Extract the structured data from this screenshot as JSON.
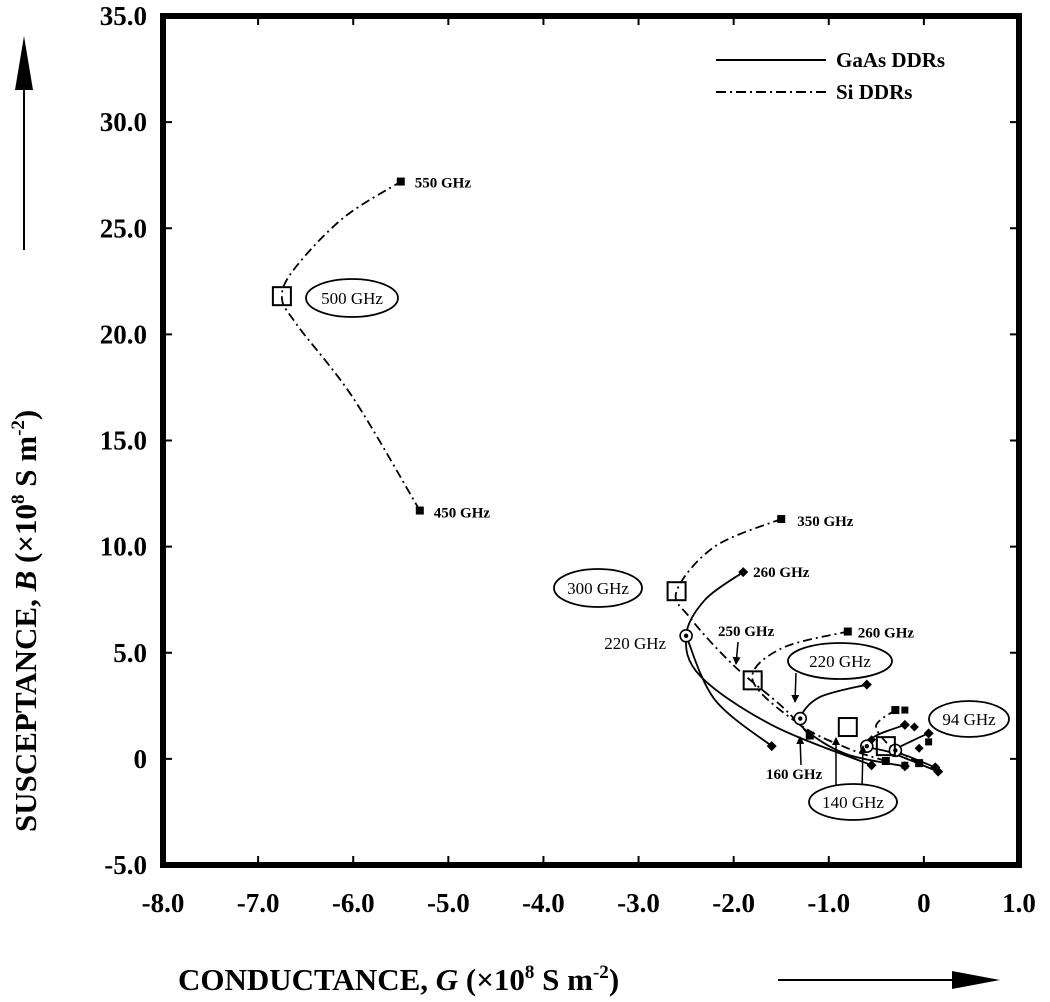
{
  "chart_data": {
    "type": "line",
    "xlabel": {
      "text": "CONDUCTANCE, ",
      "var": "G",
      "unit_pre": " (×10",
      "exp": "8",
      "unit_mid": " S m",
      "exp2": "-2",
      "unit_post": ")"
    },
    "ylabel": {
      "text": "SUSCEPTANCE, ",
      "var": "B",
      "unit_pre": " (×10",
      "exp": "8",
      "unit_mid": " S m",
      "exp2": "-2",
      "unit_post": ")"
    },
    "xlim": [
      -8.0,
      1.0
    ],
    "ylim": [
      -5.0,
      35.0
    ],
    "xticks": [
      -8.0,
      -7.0,
      -6.0,
      -5.0,
      -4.0,
      -3.0,
      -2.0,
      -1.0,
      0,
      1.0
    ],
    "xtick_labels": [
      "-8.0",
      "-7.0",
      "-6.0",
      "-5.0",
      "-4.0",
      "-3.0",
      "-2.0",
      "-1.0",
      "0",
      "1.0"
    ],
    "yticks": [
      -5.0,
      0,
      5.0,
      10.0,
      15.0,
      20.0,
      25.0,
      30.0,
      35.0
    ],
    "ytick_labels": [
      "-5.0",
      "0",
      "5.0",
      "10.0",
      "15.0",
      "20.0",
      "25.0",
      "30.0",
      "35.0"
    ],
    "grid": false,
    "legend": {
      "position": "top-right",
      "entries": [
        {
          "name": "GaAs DDRs",
          "style": "solid"
        },
        {
          "name": "Si DDRs",
          "style": "dash-dot"
        }
      ]
    },
    "series": [
      {
        "name": "Si DDRs",
        "style": "dash-dot",
        "marker": "square",
        "points": [
          [
            -5.3,
            11.7
          ],
          [
            -6.0,
            17.0
          ],
          [
            -6.6,
            20.5
          ],
          [
            -6.75,
            21.8
          ],
          [
            -6.6,
            23.2
          ],
          [
            -6.1,
            25.5
          ],
          [
            -5.5,
            27.2
          ]
        ]
      },
      {
        "name": "Si DDRs",
        "style": "dash-dot",
        "marker": "square",
        "points": [
          [
            -1.2,
            1.1
          ],
          [
            -1.5,
            2.5
          ],
          [
            -2.0,
            4.4
          ],
          [
            -2.45,
            6.6
          ],
          [
            -2.6,
            7.9
          ],
          [
            -2.2,
            10.0
          ],
          [
            -1.5,
            11.3
          ]
        ]
      },
      {
        "name": "Si DDRs",
        "style": "dash-dot",
        "marker": "square",
        "points": [
          [
            -0.4,
            -0.1
          ],
          [
            -0.8,
            0.5
          ],
          [
            -1.3,
            1.6
          ],
          [
            -1.8,
            3.7
          ],
          [
            -1.5,
            5.2
          ],
          [
            -0.8,
            6.0
          ]
        ]
      },
      {
        "name": "Si DDRs",
        "style": "dash-dot",
        "marker": "square",
        "points": [
          [
            -0.05,
            -0.2
          ],
          [
            -0.25,
            0.3
          ],
          [
            -0.4,
            0.8
          ],
          [
            -0.5,
            1.6
          ],
          [
            -0.3,
            2.3
          ]
        ]
      },
      {
        "name": "GaAs DDRs",
        "style": "solid",
        "marker": "diamond",
        "points": [
          [
            -0.55,
            -0.3
          ],
          [
            -1.6,
            1.6
          ],
          [
            -2.35,
            3.9
          ],
          [
            -2.5,
            5.8
          ],
          [
            -2.3,
            7.5
          ],
          [
            -1.9,
            8.8
          ]
        ]
      },
      {
        "name": "GaAs DDRs",
        "style": "solid",
        "marker": "diamond",
        "points": [
          [
            -2.5,
            5.8
          ],
          [
            -2.2,
            2.8
          ],
          [
            -1.6,
            0.6
          ]
        ]
      },
      {
        "name": "GaAs DDRs",
        "style": "solid",
        "marker": "diamond",
        "points": [
          [
            -0.2,
            -0.35
          ],
          [
            -0.8,
            0.2
          ],
          [
            -1.2,
            1.2
          ],
          [
            -1.3,
            1.9
          ],
          [
            -1.1,
            2.9
          ],
          [
            -0.6,
            3.5
          ]
        ]
      },
      {
        "name": "GaAs DDRs",
        "style": "solid",
        "marker": "diamond",
        "points": [
          [
            0.15,
            -0.6
          ],
          [
            -0.35,
            0.3
          ],
          [
            -0.6,
            0.6
          ],
          [
            -0.5,
            1.1
          ],
          [
            -0.2,
            1.6
          ]
        ]
      },
      {
        "name": "GaAs DDRs",
        "style": "solid",
        "marker": "diamond",
        "points": [
          [
            0.12,
            -0.4
          ],
          [
            -0.15,
            0.1
          ],
          [
            -0.3,
            0.4
          ],
          [
            -0.1,
            0.9
          ],
          [
            0.05,
            1.2
          ]
        ]
      }
    ],
    "annotations": [
      {
        "text": "550 GHz",
        "x": -5.5,
        "y": 27.2,
        "boxed": false
      },
      {
        "text": "500 GHz",
        "x": -6.75,
        "y": 21.8,
        "boxed": true
      },
      {
        "text": "450 GHz",
        "x": -5.3,
        "y": 11.7,
        "boxed": false
      },
      {
        "text": "350 GHz",
        "x": -1.5,
        "y": 11.3,
        "boxed": false
      },
      {
        "text": "300 GHz",
        "x": -2.6,
        "y": 7.9,
        "boxed": true
      },
      {
        "text": "260 GHz",
        "x": -1.9,
        "y": 8.8,
        "boxed": false
      },
      {
        "text": "220 GHz",
        "x": -2.5,
        "y": 5.8,
        "boxed": false
      },
      {
        "text": "250 GHz",
        "x": -2.0,
        "y": 4.0,
        "boxed": false
      },
      {
        "text": "260 GHz",
        "x": -0.8,
        "y": 6.0,
        "boxed": false
      },
      {
        "text": "220 GHz",
        "x": -1.8,
        "y": 3.7,
        "boxed": true
      },
      {
        "text": "160 GHz",
        "x": -1.2,
        "y": 1.1,
        "boxed": false
      },
      {
        "text": "140 GHz",
        "x": -0.8,
        "y": 1.5,
        "boxed": true
      },
      {
        "text": "94 GHz",
        "x": -0.4,
        "y": 0.6,
        "boxed": true
      }
    ]
  }
}
